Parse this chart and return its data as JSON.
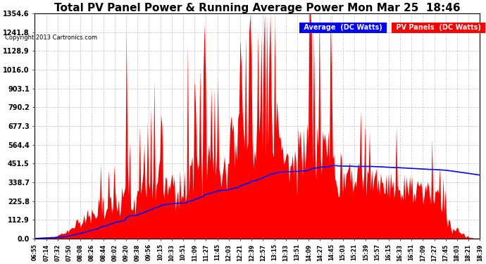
{
  "title": "Total PV Panel Power & Running Average Power Mon Mar 25  18:46",
  "copyright": "Copyright 2013 Cartronics.com",
  "legend_avg": "Average  (DC Watts)",
  "legend_pv": "PV Panels  (DC Watts)",
  "ymin": 0.0,
  "ymax": 1354.6,
  "yticks": [
    0.0,
    112.9,
    225.8,
    338.7,
    451.5,
    564.4,
    677.3,
    790.2,
    903.1,
    1016.0,
    1128.9,
    1241.8,
    1354.6
  ],
  "bg_color": "#ffffff",
  "pv_color": "#ff0000",
  "avg_color": "#0000ff",
  "grid_color": "#cccccc",
  "title_fontsize": 11,
  "xtick_labels": [
    "06:55",
    "07:14",
    "07:32",
    "07:50",
    "08:08",
    "08:26",
    "08:44",
    "09:02",
    "09:20",
    "09:38",
    "09:56",
    "10:15",
    "10:33",
    "10:51",
    "11:09",
    "11:27",
    "11:45",
    "12:03",
    "12:21",
    "12:39",
    "12:57",
    "13:15",
    "13:33",
    "13:51",
    "14:09",
    "14:27",
    "14:45",
    "15:03",
    "15:21",
    "15:39",
    "15:57",
    "16:15",
    "16:33",
    "16:51",
    "17:09",
    "17:27",
    "17:45",
    "18:03",
    "18:21",
    "18:39"
  ]
}
